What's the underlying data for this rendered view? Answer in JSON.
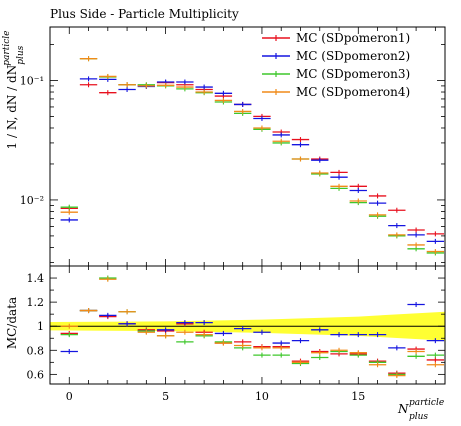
{
  "title": "Plus Side - Particle Multiplicity",
  "colors": {
    "SDpomeron1": "#e8101e",
    "SDpomeron2": "#1515e0",
    "SDpomeron3": "#3ec72b",
    "SDpomeron4": "#f08a18",
    "band": "#ffff33"
  },
  "chart_data": [
    {
      "type": "line",
      "panel": "main",
      "ylabel_main": "1 / N, dN / dN",
      "ylabel_sup": "particle",
      "ylabel_sub": "plus",
      "yscale": "log",
      "ylim": [
        0.0028,
        0.28
      ],
      "xlim": [
        -1,
        19.5
      ],
      "yticks": [
        {
          "v": 0.1,
          "label": "10⁻¹"
        },
        {
          "v": 0.01,
          "label": "10⁻²"
        }
      ],
      "x": [
        0,
        1,
        2,
        3,
        4,
        5,
        6,
        7,
        8,
        9,
        10,
        11,
        12,
        13,
        14,
        15,
        16,
        17,
        18,
        19
      ],
      "series": [
        {
          "name": "MC (SDpomeron1)",
          "key": "SDpomeron1",
          "values": [
            0.0085,
            0.092,
            0.079,
            0.092,
            0.091,
            0.096,
            0.092,
            0.084,
            0.074,
            0.063,
            0.05,
            0.037,
            0.032,
            0.022,
            0.017,
            0.013,
            0.0108,
            0.0082,
            0.0056,
            0.0052
          ]
        },
        {
          "name": "MC (SDpomeron2)",
          "key": "SDpomeron2",
          "values": [
            0.0068,
            0.103,
            0.102,
            0.084,
            0.089,
            0.097,
            0.097,
            0.088,
            0.078,
            0.063,
            0.048,
            0.035,
            0.029,
            0.0215,
            0.0155,
            0.012,
            0.0094,
            0.0061,
            0.0051,
            0.0045
          ]
        },
        {
          "name": "MC (SDpomeron3)",
          "key": "SDpomeron3",
          "values": [
            0.0087,
            0.152,
            0.107,
            0.092,
            0.092,
            0.09,
            0.085,
            0.079,
            0.066,
            0.053,
            0.039,
            0.03,
            0.022,
            0.0165,
            0.0125,
            0.0095,
            0.0073,
            0.005,
            0.0039,
            0.0036
          ]
        },
        {
          "name": "MC (SDpomeron4)",
          "key": "SDpomeron4",
          "values": [
            0.0079,
            0.152,
            0.108,
            0.092,
            0.09,
            0.091,
            0.088,
            0.08,
            0.068,
            0.055,
            0.04,
            0.031,
            0.022,
            0.0168,
            0.013,
            0.0098,
            0.0075,
            0.0051,
            0.0042,
            0.0037
          ]
        }
      ]
    },
    {
      "type": "line",
      "panel": "ratio",
      "ylabel": "MC/data",
      "ylim": [
        0.52,
        1.5
      ],
      "yticks": [
        0.6,
        0.8,
        1,
        1.2,
        1.4
      ],
      "xlabel_main": "N",
      "xlabel_sup": "particle",
      "xlabel_sub": "plus",
      "xticks": [
        0,
        5,
        10,
        15
      ],
      "x": [
        0,
        1,
        2,
        3,
        4,
        5,
        6,
        7,
        8,
        9,
        10,
        11,
        12,
        13,
        14,
        15,
        16,
        17,
        18,
        19
      ],
      "band": {
        "x": [
          -1,
          5,
          10,
          15,
          19.5
        ],
        "lo": [
          0.965,
          0.96,
          0.945,
          0.92,
          0.88
        ],
        "hi": [
          1.035,
          1.04,
          1.055,
          1.08,
          1.12
        ]
      },
      "series": [
        {
          "name": "MC (SDpomeron1)",
          "key": "SDpomeron1",
          "values": [
            0.94,
            1.13,
            1.08,
            1.02,
            0.97,
            0.96,
            1.02,
            0.95,
            0.86,
            0.87,
            0.83,
            0.83,
            0.71,
            0.79,
            0.77,
            0.77,
            0.71,
            0.61,
            0.81,
            0.72
          ]
        },
        {
          "name": "MC (SDpomeron2)",
          "key": "SDpomeron2",
          "values": [
            0.79,
            1.13,
            1.09,
            1.02,
            0.96,
            0.97,
            1.03,
            1.03,
            0.94,
            0.98,
            0.95,
            0.86,
            0.88,
            0.97,
            0.93,
            0.93,
            0.93,
            0.82,
            1.18,
            0.88
          ]
        },
        {
          "name": "MC (SDpomeron3)",
          "key": "SDpomeron3",
          "values": [
            0.93,
            1.13,
            1.4,
            1.12,
            0.96,
            0.92,
            0.87,
            0.92,
            0.87,
            0.82,
            0.76,
            0.76,
            0.69,
            0.74,
            0.79,
            0.76,
            0.7,
            0.6,
            0.75,
            0.76
          ]
        },
        {
          "name": "MC (SDpomeron4)",
          "key": "SDpomeron4",
          "values": [
            1.0,
            1.13,
            1.39,
            1.12,
            0.95,
            0.92,
            0.95,
            0.93,
            0.86,
            0.84,
            0.82,
            0.82,
            0.7,
            0.78,
            0.8,
            0.78,
            0.68,
            0.59,
            0.79,
            0.68
          ]
        }
      ]
    }
  ]
}
